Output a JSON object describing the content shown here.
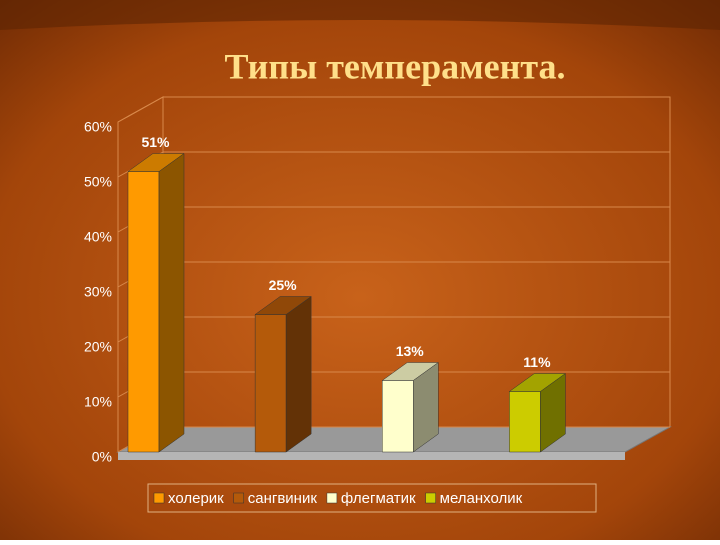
{
  "chart_data": {
    "type": "bar3d",
    "title": "Типы темперамента.",
    "categories": [
      "холерик",
      "сангвиник",
      "флегматик",
      "меланхолик"
    ],
    "values": [
      51,
      25,
      13,
      11
    ],
    "value_labels": [
      "51%",
      "25%",
      "13%",
      "11%"
    ],
    "colors": [
      "#ff9a00",
      "#b45a0a",
      "#ffffcc",
      "#cccc00"
    ],
    "ylim": [
      0,
      60
    ],
    "yticks": [
      {
        "value": 0,
        "label": "0%"
      },
      {
        "value": 10,
        "label": "10%"
      },
      {
        "value": 20,
        "label": "20%"
      },
      {
        "value": 30,
        "label": "30%"
      },
      {
        "value": 40,
        "label": "40%"
      },
      {
        "value": 50,
        "label": "50%"
      },
      {
        "value": 60,
        "label": "60%"
      }
    ],
    "grid": true
  }
}
